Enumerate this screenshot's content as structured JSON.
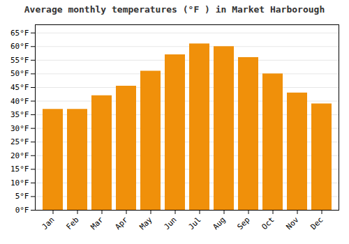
{
  "chart_data": {
    "type": "bar",
    "title": "Average monthly temperatures (°F ) in Market Harborough",
    "categories": [
      "Jan",
      "Feb",
      "Mar",
      "Apr",
      "May",
      "Jun",
      "Jul",
      "Aug",
      "Sep",
      "Oct",
      "Nov",
      "Dec"
    ],
    "values": [
      37,
      37,
      42,
      45.5,
      51,
      57,
      61,
      60,
      56,
      50,
      43,
      39
    ],
    "color": "#F0900A",
    "ylim": [
      0,
      68
    ],
    "yticks": [
      {
        "value": 0,
        "label": "0°F"
      },
      {
        "value": 5,
        "label": "5°F"
      },
      {
        "value": 10,
        "label": "10°F"
      },
      {
        "value": 15,
        "label": "15°F"
      },
      {
        "value": 20,
        "label": "20°F"
      },
      {
        "value": 25,
        "label": "25°F"
      },
      {
        "value": 30,
        "label": "30°F"
      },
      {
        "value": 35,
        "label": "35°F"
      },
      {
        "value": 40,
        "label": "40°F"
      },
      {
        "value": 45,
        "label": "45°F"
      },
      {
        "value": 50,
        "label": "50°F"
      },
      {
        "value": 55,
        "label": "55°F"
      },
      {
        "value": 60,
        "label": "60°F"
      },
      {
        "value": 65,
        "label": "65°F"
      }
    ],
    "grid": true
  }
}
